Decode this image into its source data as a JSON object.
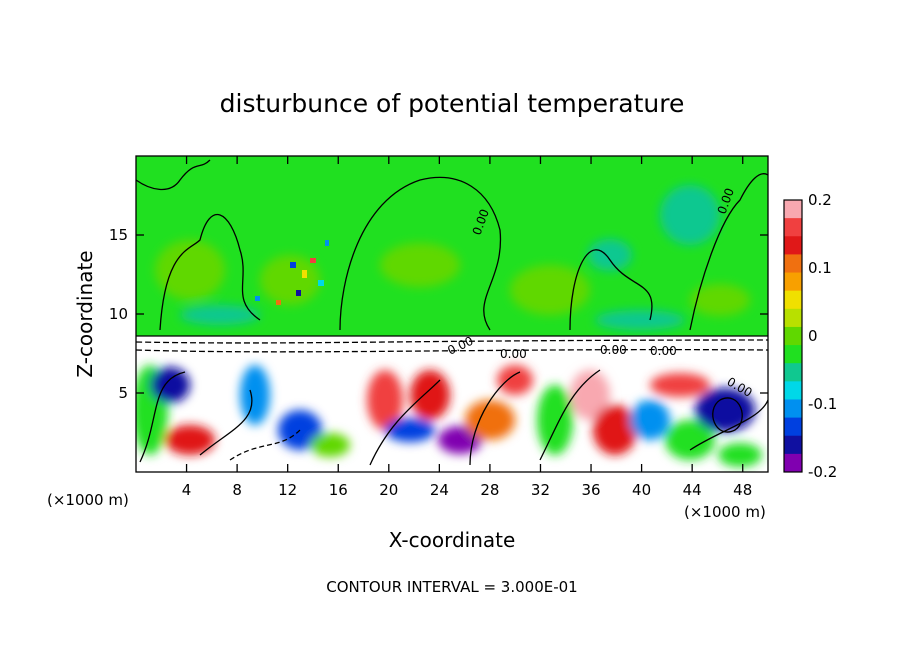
{
  "chart_data": {
    "type": "heatmap",
    "title": "disturbunce of potential temperature",
    "xlabel": "X-coordinate",
    "ylabel": "Z-coordinate",
    "x_unit_left": "(×1000 m)",
    "x_unit_right": "(×1000 m)",
    "xlim": [
      0,
      50
    ],
    "ylim": [
      0,
      20
    ],
    "x_ticks": [
      4,
      8,
      12,
      16,
      20,
      24,
      28,
      32,
      36,
      40,
      44,
      48
    ],
    "y_ticks": [
      5,
      10,
      15
    ],
    "colorbar": {
      "range": [
        -0.2,
        0.2
      ],
      "tick_labels": [
        "0.2",
        "0.1",
        "0",
        "-0.1",
        "-0.2"
      ],
      "tick_values": [
        0.2,
        0.1,
        0,
        -0.1,
        -0.2
      ],
      "colors": [
        "#f8a8b0",
        "#f04040",
        "#e01818",
        "#f07010",
        "#f8a000",
        "#f0e000",
        "#b8e000",
        "#60d800",
        "#20e020",
        "#10c890",
        "#00d8e8",
        "#0090f0",
        "#0040e0",
        "#1010a0",
        "#8000b0"
      ]
    },
    "contour_interval_text": "CONTOUR INTERVAL = 3.000E-01",
    "contour_labels": [
      "0.00",
      "0.00",
      "0.00",
      "0.00",
      "0.00",
      "0.00",
      "0.00"
    ],
    "layers": [
      {
        "region": "upper",
        "z_range": [
          8.8,
          20
        ],
        "dominant_value": 0
      },
      {
        "region": "inversion",
        "z_range": [
          7.5,
          8.8
        ],
        "dominant_value": 0
      },
      {
        "region": "lower",
        "z_range": [
          0,
          7.5
        ],
        "value_range": [
          -0.2,
          0.2
        ]
      }
    ]
  }
}
